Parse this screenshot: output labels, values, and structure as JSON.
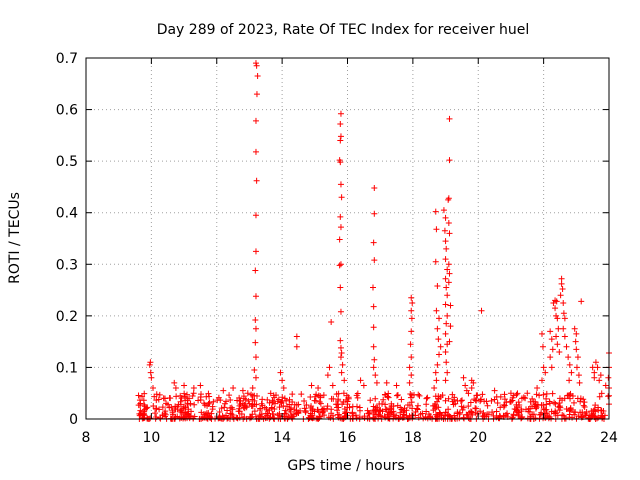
{
  "chart_data": {
    "type": "scatter",
    "title": "Day 289 of 2023, Rate Of TEC Index for receiver huel",
    "xlabel": "GPS time / hours",
    "ylabel": "ROTI / TECUs",
    "xlim": [
      8,
      24
    ],
    "ylim": [
      0,
      0.7
    ],
    "xticks": [
      8,
      10,
      12,
      14,
      16,
      18,
      20,
      22,
      24
    ],
    "yticks": [
      0,
      0.1,
      0.2,
      0.3,
      0.4,
      0.5,
      0.6,
      0.7
    ],
    "xtick_labels": [
      "8",
      "10",
      "12",
      "14",
      "16",
      "18",
      "20",
      "22",
      "24"
    ],
    "ytick_labels": [
      "0",
      "0.1",
      "0.2",
      "0.3",
      "0.4",
      "0.5",
      "0.6",
      "0.7"
    ],
    "grid": true,
    "marker": "+",
    "color": "#ff0000",
    "series": [
      {
        "name": "ROTI",
        "baseline_range": [
          9.6,
          24.0
        ],
        "baseline_level": [
          0.0,
          0.05
        ],
        "points": [
          [
            9.95,
            0.105
          ],
          [
            9.97,
            0.11
          ],
          [
            9.98,
            0.09
          ],
          [
            10.0,
            0.08
          ],
          [
            10.05,
            0.06
          ],
          [
            10.7,
            0.07
          ],
          [
            10.75,
            0.06
          ],
          [
            11.0,
            0.065
          ],
          [
            11.3,
            0.06
          ],
          [
            11.5,
            0.065
          ],
          [
            12.2,
            0.055
          ],
          [
            12.5,
            0.06
          ],
          [
            12.8,
            0.055
          ],
          [
            13.2,
            0.69
          ],
          [
            13.22,
            0.685
          ],
          [
            13.25,
            0.665
          ],
          [
            13.23,
            0.63
          ],
          [
            13.2,
            0.578
          ],
          [
            13.2,
            0.518
          ],
          [
            13.22,
            0.462
          ],
          [
            13.2,
            0.395
          ],
          [
            13.2,
            0.325
          ],
          [
            13.18,
            0.288
          ],
          [
            13.2,
            0.238
          ],
          [
            13.18,
            0.192
          ],
          [
            13.2,
            0.175
          ],
          [
            13.18,
            0.148
          ],
          [
            13.2,
            0.12
          ],
          [
            13.15,
            0.095
          ],
          [
            13.2,
            0.08
          ],
          [
            13.1,
            0.06
          ],
          [
            13.95,
            0.09
          ],
          [
            14.0,
            0.075
          ],
          [
            14.05,
            0.06
          ],
          [
            14.45,
            0.16
          ],
          [
            14.45,
            0.14
          ],
          [
            14.9,
            0.065
          ],
          [
            15.1,
            0.06
          ],
          [
            15.45,
            0.1
          ],
          [
            15.4,
            0.085
          ],
          [
            15.55,
            0.065
          ],
          [
            15.5,
            0.188
          ],
          [
            15.8,
            0.592
          ],
          [
            15.78,
            0.572
          ],
          [
            15.8,
            0.548
          ],
          [
            15.78,
            0.54
          ],
          [
            15.76,
            0.502
          ],
          [
            15.78,
            0.498
          ],
          [
            15.8,
            0.455
          ],
          [
            15.82,
            0.43
          ],
          [
            15.78,
            0.392
          ],
          [
            15.8,
            0.372
          ],
          [
            15.76,
            0.348
          ],
          [
            15.8,
            0.3
          ],
          [
            15.76,
            0.298
          ],
          [
            15.78,
            0.255
          ],
          [
            15.8,
            0.208
          ],
          [
            15.78,
            0.152
          ],
          [
            15.8,
            0.138
          ],
          [
            15.82,
            0.128
          ],
          [
            15.8,
            0.12
          ],
          [
            15.85,
            0.105
          ],
          [
            15.82,
            0.09
          ],
          [
            15.9,
            0.075
          ],
          [
            16.4,
            0.075
          ],
          [
            16.5,
            0.065
          ],
          [
            16.82,
            0.448
          ],
          [
            16.82,
            0.398
          ],
          [
            16.8,
            0.342
          ],
          [
            16.82,
            0.308
          ],
          [
            16.78,
            0.255
          ],
          [
            16.8,
            0.218
          ],
          [
            16.8,
            0.178
          ],
          [
            16.8,
            0.14
          ],
          [
            16.82,
            0.115
          ],
          [
            16.8,
            0.1
          ],
          [
            16.85,
            0.085
          ],
          [
            16.9,
            0.07
          ],
          [
            17.2,
            0.07
          ],
          [
            17.5,
            0.065
          ],
          [
            17.95,
            0.235
          ],
          [
            17.98,
            0.225
          ],
          [
            17.95,
            0.21
          ],
          [
            17.97,
            0.195
          ],
          [
            17.95,
            0.17
          ],
          [
            17.93,
            0.145
          ],
          [
            17.95,
            0.12
          ],
          [
            17.9,
            0.1
          ],
          [
            17.95,
            0.085
          ],
          [
            17.9,
            0.07
          ],
          [
            18.7,
            0.402
          ],
          [
            18.72,
            0.368
          ],
          [
            18.7,
            0.305
          ],
          [
            18.75,
            0.258
          ],
          [
            18.72,
            0.21
          ],
          [
            18.8,
            0.195
          ],
          [
            18.75,
            0.175
          ],
          [
            18.78,
            0.155
          ],
          [
            18.85,
            0.14
          ],
          [
            18.8,
            0.125
          ],
          [
            18.75,
            0.105
          ],
          [
            18.7,
            0.09
          ],
          [
            18.72,
            0.075
          ],
          [
            18.65,
            0.06
          ],
          [
            18.95,
            0.405
          ],
          [
            19.0,
            0.39
          ],
          [
            18.98,
            0.365
          ],
          [
            19.0,
            0.345
          ],
          [
            19.02,
            0.33
          ],
          [
            19.0,
            0.31
          ],
          [
            19.05,
            0.29
          ],
          [
            19.0,
            0.272
          ],
          [
            19.02,
            0.255
          ],
          [
            19.05,
            0.24
          ],
          [
            19.0,
            0.222
          ],
          [
            19.05,
            0.2
          ],
          [
            19.02,
            0.185
          ],
          [
            19.0,
            0.165
          ],
          [
            19.05,
            0.145
          ],
          [
            19.0,
            0.13
          ],
          [
            19.02,
            0.11
          ],
          [
            19.05,
            0.09
          ],
          [
            19.0,
            0.075
          ],
          [
            19.12,
            0.582
          ],
          [
            19.12,
            0.502
          ],
          [
            19.1,
            0.428
          ],
          [
            19.08,
            0.425
          ],
          [
            19.1,
            0.38
          ],
          [
            19.12,
            0.36
          ],
          [
            19.1,
            0.3
          ],
          [
            19.12,
            0.282
          ],
          [
            19.1,
            0.265
          ],
          [
            19.15,
            0.22
          ],
          [
            19.15,
            0.18
          ],
          [
            19.12,
            0.15
          ],
          [
            19.55,
            0.08
          ],
          [
            19.6,
            0.065
          ],
          [
            19.65,
            0.055
          ],
          [
            19.8,
            0.075
          ],
          [
            19.85,
            0.07
          ],
          [
            19.8,
            0.06
          ],
          [
            20.1,
            0.21
          ],
          [
            20.5,
            0.055
          ],
          [
            21.0,
            0.05
          ],
          [
            21.5,
            0.05
          ],
          [
            21.8,
            0.06
          ],
          [
            21.95,
            0.165
          ],
          [
            21.98,
            0.14
          ],
          [
            22.0,
            0.1
          ],
          [
            22.05,
            0.09
          ],
          [
            21.95,
            0.075
          ],
          [
            22.2,
            0.17
          ],
          [
            22.25,
            0.155
          ],
          [
            22.28,
            0.135
          ],
          [
            22.2,
            0.12
          ],
          [
            22.25,
            0.1
          ],
          [
            22.3,
            0.225
          ],
          [
            22.35,
            0.23
          ],
          [
            22.4,
            0.228
          ],
          [
            22.35,
            0.215
          ],
          [
            22.38,
            0.2
          ],
          [
            22.42,
            0.195
          ],
          [
            22.45,
            0.175
          ],
          [
            22.38,
            0.16
          ],
          [
            22.42,
            0.145
          ],
          [
            22.48,
            0.13
          ],
          [
            22.55,
            0.272
          ],
          [
            22.55,
            0.262
          ],
          [
            22.58,
            0.252
          ],
          [
            22.52,
            0.24
          ],
          [
            22.6,
            0.225
          ],
          [
            22.62,
            0.205
          ],
          [
            22.65,
            0.195
          ],
          [
            22.6,
            0.175
          ],
          [
            22.65,
            0.16
          ],
          [
            22.7,
            0.14
          ],
          [
            22.75,
            0.12
          ],
          [
            22.8,
            0.105
          ],
          [
            22.85,
            0.09
          ],
          [
            22.78,
            0.075
          ],
          [
            22.95,
            0.175
          ],
          [
            23.0,
            0.165
          ],
          [
            22.98,
            0.15
          ],
          [
            23.0,
            0.135
          ],
          [
            23.05,
            0.12
          ],
          [
            23.02,
            0.1
          ],
          [
            23.08,
            0.085
          ],
          [
            23.1,
            0.07
          ],
          [
            23.15,
            0.228
          ],
          [
            23.5,
            0.1
          ],
          [
            23.55,
            0.09
          ],
          [
            23.6,
            0.11
          ],
          [
            23.65,
            0.1
          ],
          [
            23.55,
            0.08
          ],
          [
            23.7,
            0.075
          ],
          [
            23.75,
            0.085
          ],
          [
            23.9,
            0.065
          ],
          [
            24.0,
            0.128
          ],
          [
            24.0,
            0.1
          ],
          [
            23.98,
            0.08
          ],
          [
            24.0,
            0.06
          ],
          [
            24.0,
            0.045
          ]
        ]
      }
    ]
  }
}
